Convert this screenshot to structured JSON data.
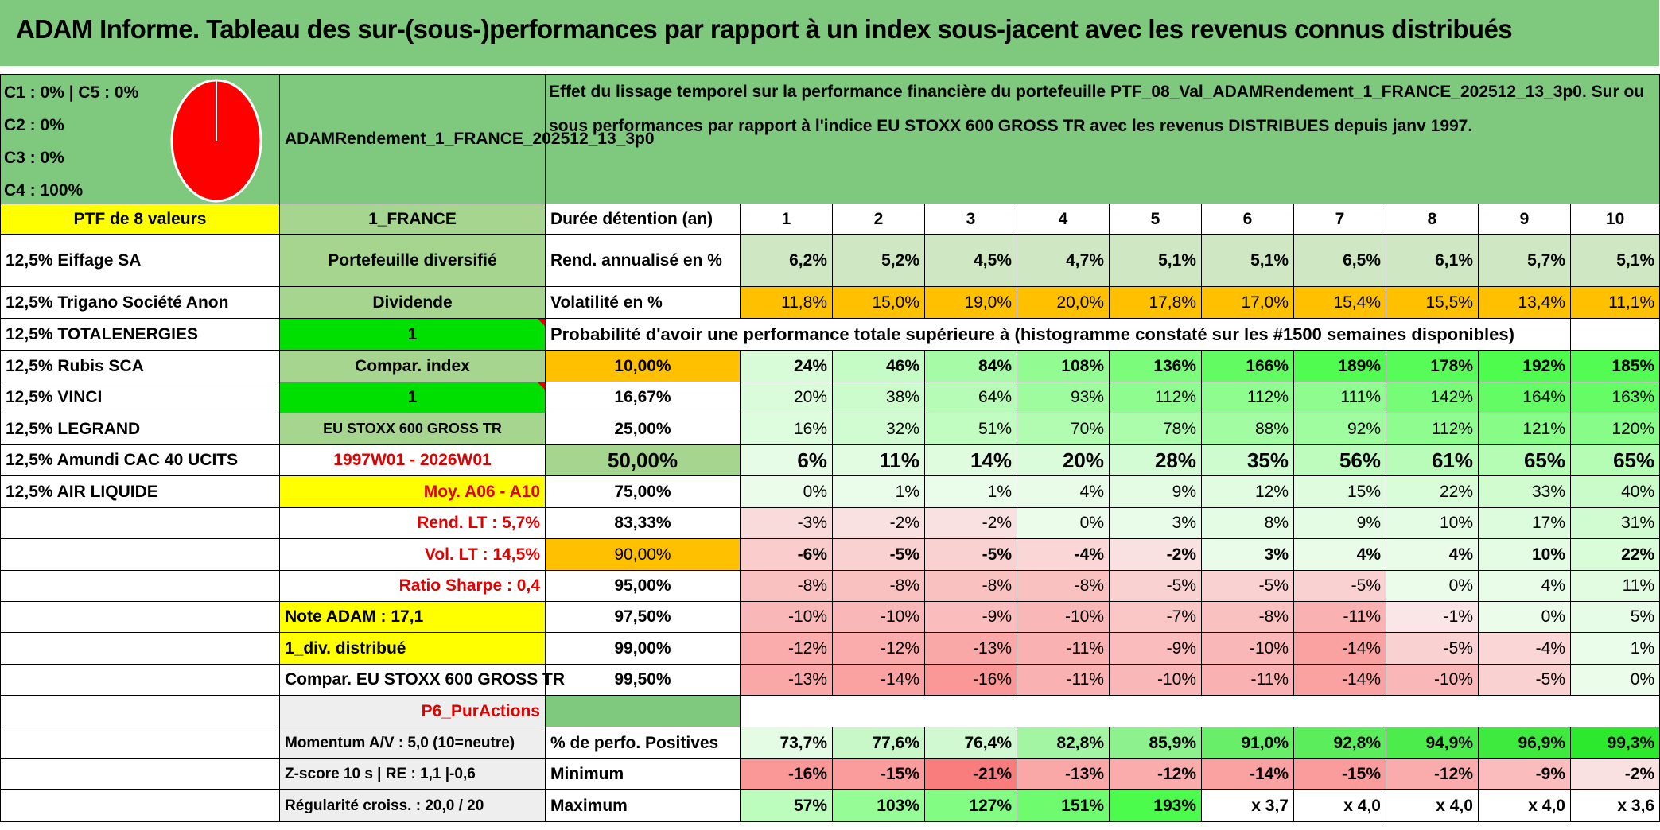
{
  "title": "ADAM Informe. Tableau des sur-(sous-)performances par rapport à un index sous-jacent avec les revenus connus distribués",
  "pie": {
    "legend": [
      "C1 : 0% | C5 : 0%",
      "C2 : 0%",
      "C3 : 0%",
      "C4 : 100%"
    ],
    "color": "#ff0000"
  },
  "portfolio_code": "ADAMRendement_1_FRANCE_202512_13_3p0",
  "description": "Effet du lissage temporel sur la performance financière du portefeuille PTF_08_Val_ADAMRendement_1_FRANCE_202512_13_3p0. Sur ou sous performances par rapport à l'indice EU STOXX 600 GROSS TR avec les revenus DISTRIBUES depuis janv 1997.",
  "holdings_header": "PTF de 8 valeurs",
  "holdings": [
    "12,5% Eiffage SA",
    "12,5% Trigano Société Anon",
    "12,5% TOTALENERGIES",
    "12,5% Rubis SCA",
    "12,5% VINCI",
    "12,5% LEGRAND",
    "12,5% Amundi CAC 40 UCITS",
    "12,5% AIR LIQUIDE"
  ],
  "info": {
    "country": "1_FRANCE",
    "type": "Portefeuille diversifié",
    "dividend_label": "Dividende",
    "dividend_value": "1",
    "compar_label": "Compar. index",
    "compar_value": "1",
    "index_name": "EU STOXX 600 GROSS TR",
    "period": "1997W01 - 2026W01",
    "avg": "Moy. A06 - A10",
    "rend_lt": "Rend. LT : 5,7%",
    "vol_lt": "Vol. LT : 14,5%",
    "sharpe": "Ratio Sharpe : 0,4",
    "note": "Note ADAM : 17,1",
    "div_distrib": "1_div. distribué",
    "compar_text": "Compar. EU STOXX 600 GROSS TR",
    "strategy": "P6_PurActions",
    "momentum": "Momentum A/V : 5,0 (10=neutre)",
    "zscore": "Z-score 10 s | RE : 1,1 |-0,6",
    "regularite": "Régularité croiss. : 20,0 / 20"
  },
  "duration_label": "Durée détention (an)",
  "years": [
    "1",
    "2",
    "3",
    "4",
    "5",
    "6",
    "7",
    "8",
    "9",
    "10"
  ],
  "rend_label": "Rend. annualisé en %",
  "rend": [
    "6,2%",
    "5,2%",
    "4,5%",
    "4,7%",
    "5,1%",
    "5,1%",
    "6,5%",
    "6,1%",
    "5,7%",
    "5,1%"
  ],
  "vol_label": "Volatilité en %",
  "vol": [
    "11,8%",
    "15,0%",
    "19,0%",
    "20,0%",
    "17,8%",
    "17,0%",
    "15,4%",
    "15,5%",
    "13,4%",
    "11,1%"
  ],
  "prob_title": "Probabilité d'avoir une performance totale supérieure à (histogramme constaté sur les #1500 semaines disponibles)",
  "prob_rows": [
    {
      "label": "10,00%",
      "values": [
        "24%",
        "46%",
        "84%",
        "108%",
        "136%",
        "166%",
        "189%",
        "178%",
        "192%",
        "185%"
      ]
    },
    {
      "label": "16,67%",
      "values": [
        "20%",
        "38%",
        "64%",
        "93%",
        "112%",
        "112%",
        "111%",
        "142%",
        "164%",
        "163%"
      ]
    },
    {
      "label": "25,00%",
      "values": [
        "16%",
        "32%",
        "51%",
        "70%",
        "78%",
        "88%",
        "92%",
        "112%",
        "121%",
        "120%"
      ]
    },
    {
      "label": "50,00%",
      "values": [
        "6%",
        "11%",
        "14%",
        "20%",
        "28%",
        "35%",
        "56%",
        "61%",
        "65%",
        "65%"
      ]
    },
    {
      "label": "75,00%",
      "values": [
        "0%",
        "1%",
        "1%",
        "4%",
        "9%",
        "12%",
        "15%",
        "22%",
        "33%",
        "40%"
      ]
    },
    {
      "label": "83,33%",
      "values": [
        "-3%",
        "-2%",
        "-2%",
        "0%",
        "3%",
        "8%",
        "9%",
        "10%",
        "17%",
        "31%"
      ]
    },
    {
      "label": "90,00%",
      "values": [
        "-6%",
        "-5%",
        "-5%",
        "-4%",
        "-2%",
        "3%",
        "4%",
        "4%",
        "10%",
        "22%"
      ]
    },
    {
      "label": "95,00%",
      "values": [
        "-8%",
        "-8%",
        "-8%",
        "-8%",
        "-5%",
        "-5%",
        "-5%",
        "0%",
        "4%",
        "11%"
      ]
    },
    {
      "label": "97,50%",
      "values": [
        "-10%",
        "-10%",
        "-9%",
        "-10%",
        "-7%",
        "-8%",
        "-11%",
        "-1%",
        "0%",
        "5%"
      ]
    },
    {
      "label": "99,00%",
      "values": [
        "-12%",
        "-12%",
        "-13%",
        "-11%",
        "-9%",
        "-10%",
        "-14%",
        "-5%",
        "-4%",
        "1%"
      ]
    },
    {
      "label": "99,50%",
      "values": [
        "-13%",
        "-14%",
        "-16%",
        "-11%",
        "-10%",
        "-11%",
        "-14%",
        "-10%",
        "-5%",
        "0%"
      ]
    }
  ],
  "pos_label": "% de perfo. Positives",
  "pos": [
    "73,7%",
    "77,6%",
    "76,4%",
    "82,8%",
    "85,9%",
    "91,0%",
    "92,8%",
    "94,9%",
    "96,9%",
    "99,3%"
  ],
  "min_label": "Minimum",
  "min": [
    "-16%",
    "-15%",
    "-21%",
    "-13%",
    "-12%",
    "-14%",
    "-15%",
    "-12%",
    "-9%",
    "-2%"
  ],
  "max_label": "Maximum",
  "max": [
    "57%",
    "103%",
    "127%",
    "151%",
    "193%",
    "x 3,7",
    "x 4,0",
    "x 4,0",
    "x 4,0",
    "x 3,6"
  ],
  "colors": {
    "header_green": "#7ec97e",
    "yellow": "#ffff00",
    "orange": "#ffc000",
    "bright_green": "#00e000",
    "red_text": "#e00000"
  }
}
